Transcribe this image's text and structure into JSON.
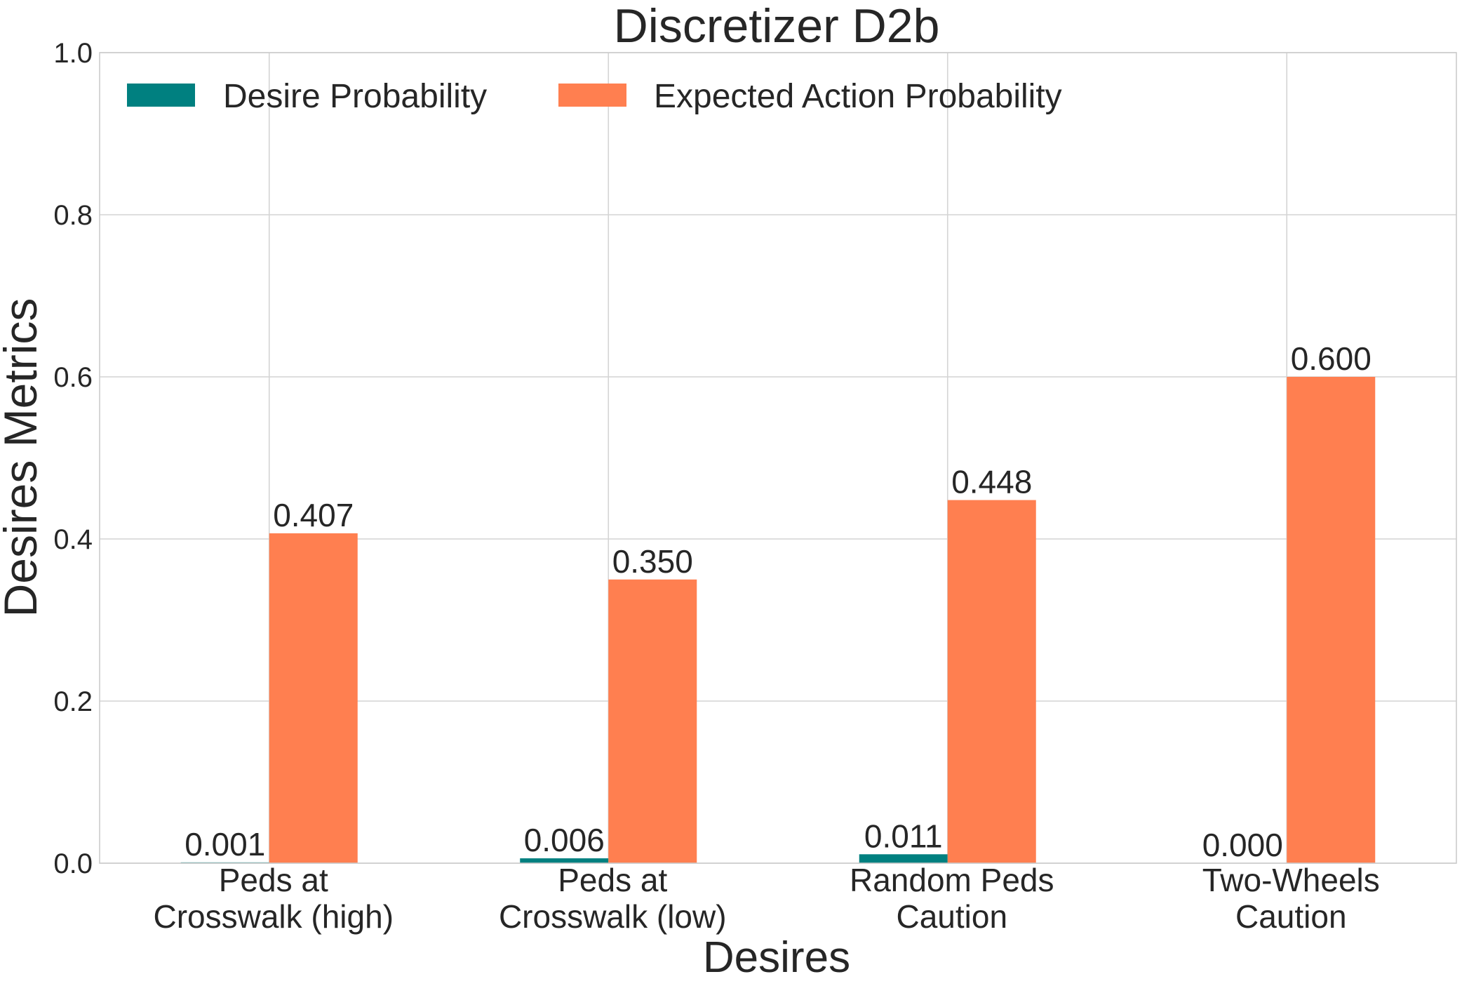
{
  "chart_data": {
    "type": "bar",
    "title": "Discretizer D2b",
    "xlabel": "Desires",
    "ylabel": "Desires Metrics",
    "ylim": [
      0,
      1.0
    ],
    "yticks": [
      "0.0",
      "0.2",
      "0.4",
      "0.6",
      "0.8",
      "1.0"
    ],
    "grid": true,
    "legend_position": "top-left",
    "categories": [
      [
        "Peds at",
        "Crosswalk (high)"
      ],
      [
        "Peds at",
        "Crosswalk (low)"
      ],
      [
        "Random Peds",
        "Caution"
      ],
      [
        "Two-Wheels",
        "Caution"
      ]
    ],
    "series": [
      {
        "name": "Desire Probability",
        "color": "#008080",
        "values": [
          0.001,
          0.006,
          0.011,
          0.0
        ],
        "labels": [
          "0.001",
          "0.006",
          "0.011",
          "0.000"
        ]
      },
      {
        "name": "Expected Action Probability",
        "color": "#ff7f50",
        "values": [
          0.407,
          0.35,
          0.448,
          0.6
        ],
        "labels": [
          "0.407",
          "0.350",
          "0.448",
          "0.600"
        ]
      }
    ]
  }
}
